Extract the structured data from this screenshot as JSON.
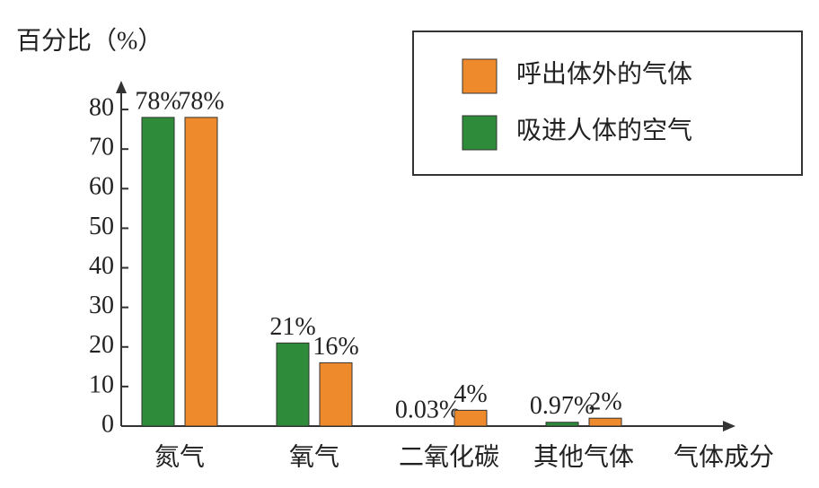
{
  "chart_data": {
    "type": "bar",
    "ylabel": "百分比（%）",
    "xlabel": "气体成分",
    "categories": [
      "氮气",
      "氧气",
      "二氧化碳",
      "其他气体"
    ],
    "series": [
      {
        "name": "吸进人体的空气",
        "color": "#2e8b3a",
        "values": [
          78,
          21,
          0.03,
          0.97
        ],
        "value_labels": [
          "78%",
          "21%",
          "0.03%",
          "0.97%"
        ]
      },
      {
        "name": "呼出体外的气体",
        "color": "#ef8a2c",
        "values": [
          78,
          16,
          4,
          2
        ],
        "value_labels": [
          "78%",
          "16%",
          "4%",
          "2%"
        ]
      }
    ],
    "ylim": [
      0,
      85
    ],
    "yticks": [
      0,
      10,
      20,
      30,
      40,
      50,
      60,
      70,
      80
    ],
    "legend": "top-right"
  }
}
